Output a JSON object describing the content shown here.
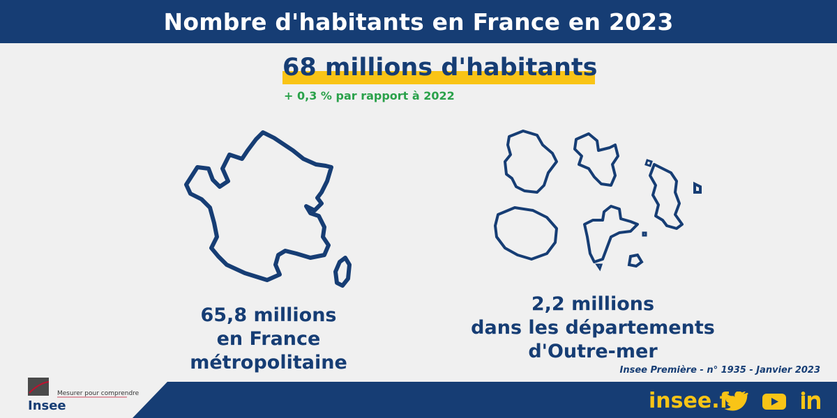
{
  "header": {
    "title": "Nombre d'habitants en France en 2023"
  },
  "headline": {
    "total": "68 millions d'habitants",
    "change": "+ 0,3 % par rapport à 2022"
  },
  "metro": {
    "line1": "65,8 millions",
    "line2": "en France métropolitaine",
    "icon": "france-map-icon"
  },
  "outremer": {
    "line1": "2,2 millions",
    "line2": "dans les départements",
    "line3": "d'Outre-mer",
    "icon": "overseas-departments-map-icon"
  },
  "source": "Insee Première - n° 1935 - Janvier 2023",
  "footer": {
    "logo_text": "Insee",
    "tagline": "Mesurer pour comprendre",
    "site": "insee.fr",
    "social": [
      "twitter-icon",
      "youtube-icon",
      "linkedin-icon"
    ]
  },
  "colors": {
    "navy": "#163d74",
    "yellow": "#f9c416",
    "green": "#2aa14a",
    "background": "#f0f0f0"
  }
}
